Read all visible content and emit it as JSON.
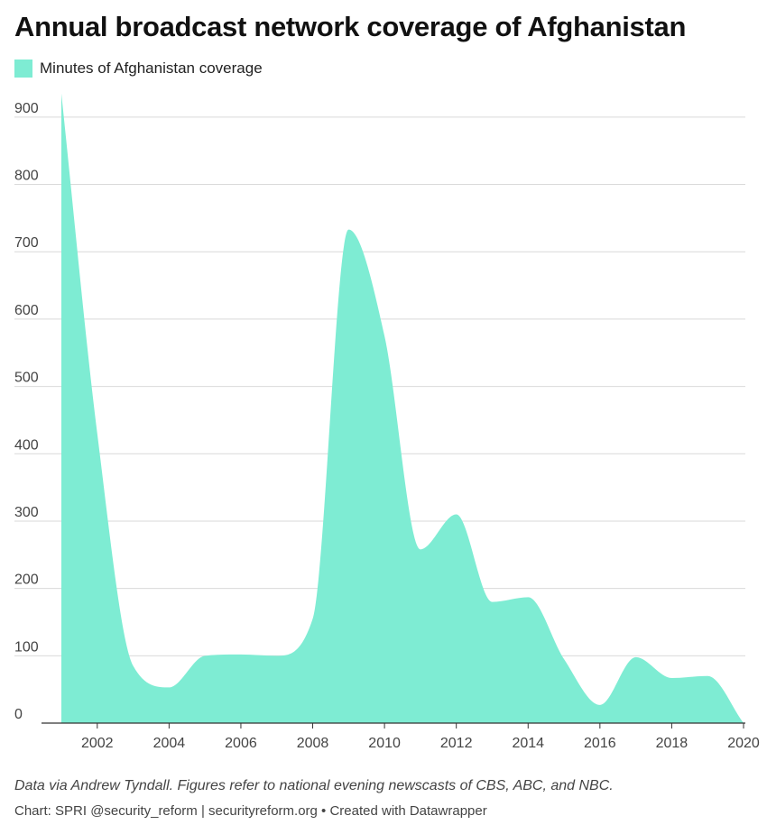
{
  "header": {
    "title": "Annual broadcast network coverage of Afghanistan"
  },
  "footer": {
    "notes": "Data via Andrew Tyndall. Figures refer to national evening newscasts of CBS, ABC, and NBC.",
    "credit": "Chart: SPRI @security_reform | securityreform.org • Created with Datawrapper"
  },
  "colors": {
    "area": "#7eecd3",
    "grid": "#d9d9d9",
    "baseline": "#333333"
  },
  "chart_data": {
    "type": "area",
    "title": "Annual broadcast network coverage of Afghanistan",
    "xlabel": "",
    "ylabel": "",
    "x": [
      2001,
      2002,
      2003,
      2004,
      2005,
      2006,
      2007,
      2008,
      2009,
      2010,
      2011,
      2012,
      2013,
      2014,
      2015,
      2016,
      2017,
      2018,
      2019,
      2020
    ],
    "series": [
      {
        "name": "Minutes of Afghanistan coverage",
        "values": [
          935,
          430,
          85,
          53,
          100,
          102,
          100,
          155,
          733,
          575,
          258,
          310,
          180,
          187,
          95,
          27,
          98,
          67,
          70,
          0
        ]
      }
    ],
    "xlim": [
      2001,
      2020
    ],
    "ylim": [
      0,
      940
    ],
    "y_ticks": [
      0,
      100,
      200,
      300,
      400,
      500,
      600,
      700,
      800,
      900
    ],
    "x_ticks": [
      2002,
      2004,
      2006,
      2008,
      2010,
      2012,
      2014,
      2016,
      2018,
      2020
    ],
    "grid": "horizontal",
    "legend": "top-left"
  }
}
